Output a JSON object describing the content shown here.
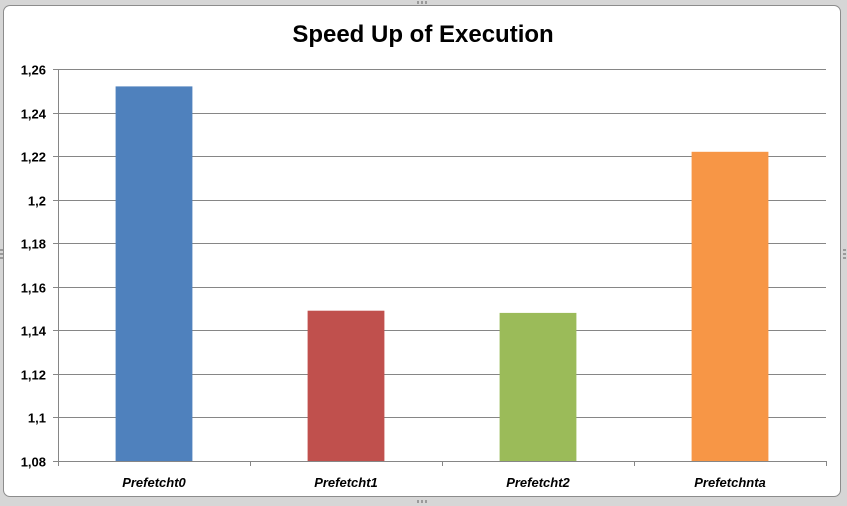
{
  "chart_data": {
    "type": "bar",
    "title": "Speed Up of Execution",
    "xlabel": "",
    "ylabel": "",
    "categories": [
      "Prefetcht0",
      "Prefetcht1",
      "Prefetcht2",
      "Prefetchnta"
    ],
    "values": [
      1.252,
      1.149,
      1.148,
      1.222
    ],
    "colors": [
      "#4f81bd",
      "#c0504d",
      "#9bbb59",
      "#f79646"
    ],
    "ylim": [
      1.08,
      1.26
    ],
    "yticks": [
      1.08,
      1.1,
      1.12,
      1.14,
      1.16,
      1.18,
      1.2,
      1.22,
      1.24,
      1.26
    ],
    "ytick_labels": [
      "1,08",
      "1,1",
      "1,12",
      "1,14",
      "1,16",
      "1,18",
      "1,2",
      "1,22",
      "1,24",
      "1,26"
    ],
    "grid": true,
    "legend": "none",
    "gridline_color": "#868686",
    "axis_color": "#868686"
  }
}
